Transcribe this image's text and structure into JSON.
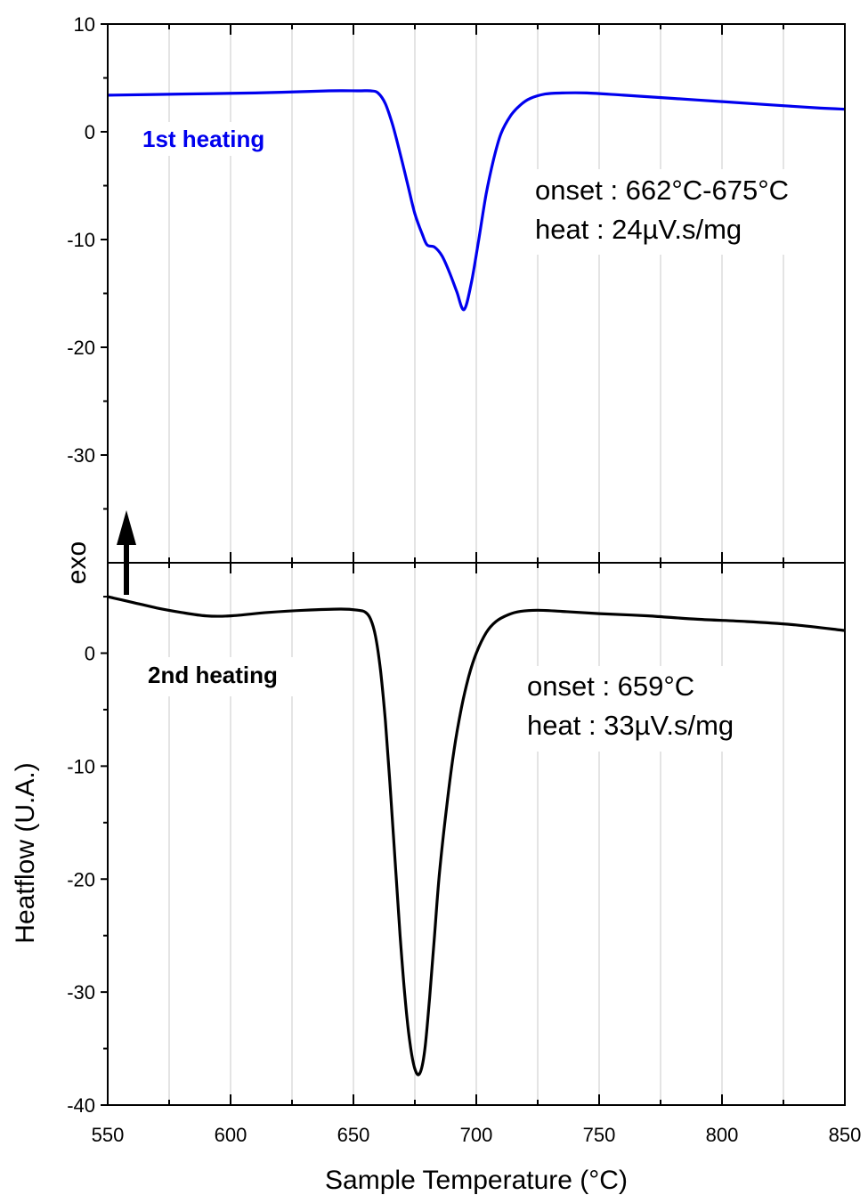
{
  "chart_data": [
    {
      "type": "line",
      "title": "",
      "xlim": [
        550,
        850
      ],
      "ylim": [
        -40,
        10
      ],
      "x_ticks": [
        "550",
        "600",
        "650",
        "700",
        "750",
        "800",
        "850"
      ],
      "y_ticks": [
        "10",
        "0",
        "-10",
        "-20",
        "-30"
      ],
      "grid": "vertical",
      "series": [
        {
          "name": "1st heating",
          "color": "#0000ee",
          "x": [
            550,
            580,
            610,
            640,
            652,
            657,
            660,
            663,
            666,
            669,
            672,
            675,
            678,
            680,
            683,
            686,
            689,
            692,
            695,
            698,
            701,
            704,
            707,
            710,
            714,
            718,
            722,
            728,
            735,
            745,
            760,
            780,
            800,
            820,
            840,
            850
          ],
          "y": [
            3.4,
            3.5,
            3.6,
            3.8,
            3.8,
            3.8,
            3.6,
            2.6,
            0.6,
            -2,
            -4.8,
            -7.6,
            -9.5,
            -10.5,
            -10.7,
            -11.5,
            -13,
            -14.8,
            -16.5,
            -14,
            -10,
            -5.8,
            -2.6,
            -0.2,
            1.5,
            2.5,
            3.1,
            3.5,
            3.6,
            3.6,
            3.4,
            3.1,
            2.8,
            2.5,
            2.2,
            2.1
          ]
        }
      ],
      "annotations": [
        "onset : 662°C-675°C",
        "heat : 24µV.s/mg"
      ]
    },
    {
      "type": "line",
      "title": "",
      "xlim": [
        550,
        850
      ],
      "ylim": [
        -40,
        8
      ],
      "x_ticks": [
        "550",
        "600",
        "650",
        "700",
        "750",
        "800",
        "850"
      ],
      "y_ticks": [
        "0",
        "-10",
        "-20",
        "-30",
        "-40"
      ],
      "grid": "vertical",
      "series": [
        {
          "name": "2nd heating",
          "color": "#000000",
          "x": [
            550,
            560,
            570,
            580,
            590,
            600,
            615,
            630,
            645,
            652,
            655,
            657,
            659,
            661,
            663,
            665,
            667,
            669,
            671,
            673,
            675,
            677,
            679,
            681,
            683,
            685,
            688,
            691,
            694,
            697,
            700,
            704,
            708,
            713,
            718,
            725,
            735,
            750,
            770,
            790,
            810,
            830,
            850
          ],
          "y": [
            5,
            4.5,
            4,
            3.6,
            3.3,
            3.3,
            3.6,
            3.8,
            3.9,
            3.8,
            3.6,
            3,
            1.5,
            -1.5,
            -6,
            -12,
            -18.5,
            -25,
            -30.5,
            -34.5,
            -36.8,
            -37.2,
            -35.2,
            -30.5,
            -25,
            -19.5,
            -13.5,
            -8.5,
            -4.8,
            -2,
            0,
            1.8,
            2.8,
            3.4,
            3.7,
            3.8,
            3.7,
            3.5,
            3.3,
            3.0,
            2.8,
            2.5,
            2.0
          ]
        }
      ],
      "annotations": [
        "onset : 659°C",
        "heat : 33µV.s/mg"
      ]
    }
  ],
  "axes": {
    "xlabel": "Sample Temperature (°C)",
    "ylabel": "Heatflow (U.A.)",
    "direction_label": "exo"
  }
}
